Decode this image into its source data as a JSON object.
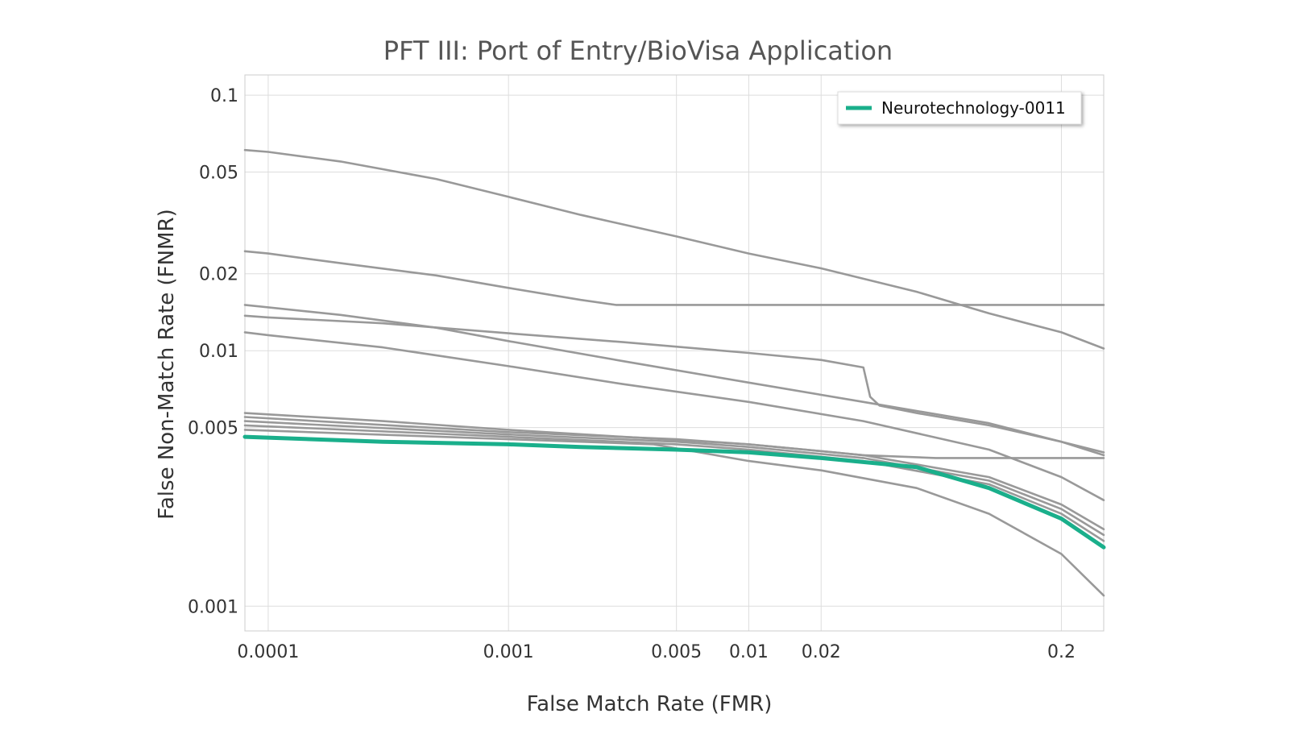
{
  "chart_data": {
    "type": "line",
    "title": "PFT III: Port of Entry/BioVisa Application",
    "xlabel": "False Match Rate (FMR)",
    "ylabel": "False Non-Match Rate (FNMR)",
    "x_scale": "log",
    "y_scale": "log",
    "xlim": [
      8e-05,
      0.3
    ],
    "ylim": [
      0.0008,
      0.12
    ],
    "x_ticks": [
      {
        "value": 0.0001,
        "label": "0.0001"
      },
      {
        "value": 0.001,
        "label": "0.001"
      },
      {
        "value": 0.005,
        "label": "0.005"
      },
      {
        "value": 0.01,
        "label": "0.01"
      },
      {
        "value": 0.02,
        "label": "0.02"
      },
      {
        "value": 0.2,
        "label": "0.2"
      }
    ],
    "y_ticks": [
      {
        "value": 0.1,
        "label": "0.1"
      },
      {
        "value": 0.05,
        "label": "0.05"
      },
      {
        "value": 0.02,
        "label": "0.02"
      },
      {
        "value": 0.01,
        "label": "0.01"
      },
      {
        "value": 0.005,
        "label": "0.005"
      },
      {
        "value": 0.001,
        "label": "0.001"
      }
    ],
    "grid": true,
    "legend_position": "top-right",
    "highlight_color": "#1aaf8b",
    "other_color": "#999999",
    "series": [
      {
        "name": "",
        "highlight": false,
        "points": [
          [
            8e-05,
            0.061
          ],
          [
            0.0001,
            0.06
          ],
          [
            0.0002,
            0.055
          ],
          [
            0.0005,
            0.047
          ],
          [
            0.001,
            0.04
          ],
          [
            0.002,
            0.034
          ],
          [
            0.005,
            0.028
          ],
          [
            0.01,
            0.024
          ],
          [
            0.02,
            0.021
          ],
          [
            0.05,
            0.017
          ],
          [
            0.1,
            0.014
          ],
          [
            0.2,
            0.0118
          ],
          [
            0.3,
            0.0102
          ]
        ]
      },
      {
        "name": "",
        "highlight": false,
        "points": [
          [
            8e-05,
            0.0245
          ],
          [
            0.0001,
            0.024
          ],
          [
            0.0002,
            0.022
          ],
          [
            0.0005,
            0.0197
          ],
          [
            0.001,
            0.0176
          ],
          [
            0.002,
            0.0158
          ],
          [
            0.0028,
            0.0151
          ],
          [
            0.005,
            0.0151
          ],
          [
            0.01,
            0.0151
          ],
          [
            0.05,
            0.0151
          ],
          [
            0.1,
            0.0151
          ],
          [
            0.3,
            0.0151
          ]
        ]
      },
      {
        "name": "",
        "highlight": false,
        "points": [
          [
            8e-05,
            0.0137
          ],
          [
            0.0001,
            0.0135
          ],
          [
            0.0003,
            0.0128
          ],
          [
            0.001,
            0.0117
          ],
          [
            0.003,
            0.0108
          ],
          [
            0.01,
            0.0098
          ],
          [
            0.02,
            0.0092
          ],
          [
            0.03,
            0.0086
          ],
          [
            0.032,
            0.0066
          ],
          [
            0.035,
            0.0061
          ],
          [
            0.05,
            0.0057
          ],
          [
            0.1,
            0.0051
          ],
          [
            0.2,
            0.0044
          ],
          [
            0.3,
            0.0039
          ]
        ]
      },
      {
        "name": "",
        "highlight": false,
        "points": [
          [
            8e-05,
            0.0151
          ],
          [
            0.0002,
            0.0138
          ],
          [
            0.0005,
            0.0123
          ],
          [
            0.001,
            0.0109
          ],
          [
            0.003,
            0.0091
          ],
          [
            0.01,
            0.0075
          ],
          [
            0.03,
            0.0063
          ],
          [
            0.1,
            0.0052
          ],
          [
            0.2,
            0.0044
          ],
          [
            0.3,
            0.004
          ]
        ]
      },
      {
        "name": "",
        "highlight": false,
        "points": [
          [
            8e-05,
            0.0118
          ],
          [
            0.0001,
            0.0115
          ],
          [
            0.0003,
            0.0103
          ],
          [
            0.001,
            0.0087
          ],
          [
            0.003,
            0.0074
          ],
          [
            0.01,
            0.0063
          ],
          [
            0.03,
            0.0053
          ],
          [
            0.1,
            0.0041
          ],
          [
            0.2,
            0.0032
          ],
          [
            0.3,
            0.0026
          ]
        ]
      },
      {
        "name": "",
        "highlight": false,
        "points": [
          [
            8e-05,
            0.0057
          ],
          [
            0.0003,
            0.0053
          ],
          [
            0.001,
            0.0049
          ],
          [
            0.003,
            0.0046
          ],
          [
            0.01,
            0.0043
          ],
          [
            0.03,
            0.0039
          ],
          [
            0.06,
            0.0038
          ],
          [
            0.3,
            0.0038
          ]
        ]
      },
      {
        "name": "",
        "highlight": false,
        "points": [
          [
            8e-05,
            0.0055
          ],
          [
            0.001,
            0.0048
          ],
          [
            0.005,
            0.0045
          ],
          [
            0.01,
            0.0043
          ],
          [
            0.03,
            0.0039
          ],
          [
            0.1,
            0.0032
          ],
          [
            0.2,
            0.0025
          ],
          [
            0.3,
            0.002
          ]
        ]
      },
      {
        "name": "",
        "highlight": false,
        "points": [
          [
            8e-05,
            0.0053
          ],
          [
            0.001,
            0.0047
          ],
          [
            0.005,
            0.0044
          ],
          [
            0.01,
            0.0042
          ],
          [
            0.03,
            0.0038
          ],
          [
            0.1,
            0.0031
          ],
          [
            0.2,
            0.0024
          ],
          [
            0.3,
            0.0019
          ]
        ]
      },
      {
        "name": "",
        "highlight": false,
        "points": [
          [
            8e-05,
            0.0051
          ],
          [
            0.001,
            0.0046
          ],
          [
            0.005,
            0.0043
          ],
          [
            0.01,
            0.0041
          ],
          [
            0.03,
            0.0037
          ],
          [
            0.1,
            0.003
          ],
          [
            0.2,
            0.0023
          ],
          [
            0.3,
            0.0018
          ]
        ]
      },
      {
        "name": "",
        "highlight": false,
        "points": [
          [
            8e-05,
            0.0049
          ],
          [
            0.001,
            0.0045
          ],
          [
            0.004,
            0.0043
          ],
          [
            0.01,
            0.0037
          ],
          [
            0.02,
            0.0034
          ],
          [
            0.05,
            0.0029
          ],
          [
            0.1,
            0.0023
          ],
          [
            0.2,
            0.0016
          ],
          [
            0.3,
            0.0011
          ]
        ]
      },
      {
        "name": "Neurotechnology-0011",
        "highlight": true,
        "points": [
          [
            8e-05,
            0.0046
          ],
          [
            0.0003,
            0.0044
          ],
          [
            0.001,
            0.0043
          ],
          [
            0.002,
            0.0042
          ],
          [
            0.005,
            0.0041
          ],
          [
            0.01,
            0.004
          ],
          [
            0.02,
            0.0038
          ],
          [
            0.05,
            0.0035
          ],
          [
            0.1,
            0.0029
          ],
          [
            0.2,
            0.0022
          ],
          [
            0.3,
            0.0017
          ]
        ]
      }
    ]
  }
}
